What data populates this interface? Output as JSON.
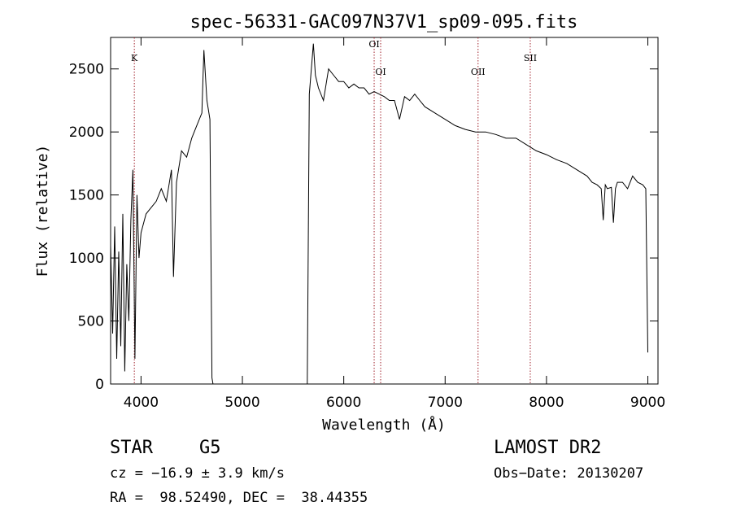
{
  "chart_data": {
    "type": "line",
    "title": "spec-56331-GAC097N37V1_sp09-095.fits",
    "xlabel": "Wavelength (Å)",
    "ylabel": "Flux (relative)",
    "xlim": [
      3700,
      9100
    ],
    "ylim": [
      0,
      2750
    ],
    "x_ticks": [
      4000,
      5000,
      6000,
      7000,
      8000,
      9000
    ],
    "y_ticks": [
      0,
      500,
      1000,
      1500,
      2000,
      2500
    ],
    "grid": false,
    "series": [
      {
        "x": [
          3700,
          3720,
          3740,
          3760,
          3780,
          3800,
          3820,
          3840,
          3860,
          3880,
          3900,
          3920,
          3940,
          3960,
          3980,
          4000,
          4050,
          4100,
          4150,
          4200,
          4250,
          4300,
          4320,
          4350,
          4400,
          4450,
          4500,
          4550,
          4600,
          4620,
          4650,
          4680,
          4700,
          4710,
          4800,
          5000,
          5200,
          5400,
          5600,
          5640,
          5660,
          5680,
          5700,
          5720,
          5750,
          5800,
          5850,
          5900,
          5950,
          6000,
          6050,
          6100,
          6150,
          6200,
          6250,
          6300,
          6350,
          6400,
          6450,
          6500,
          6550,
          6600,
          6650,
          6700,
          6750,
          6800,
          6900,
          7000,
          7100,
          7200,
          7300,
          7400,
          7500,
          7600,
          7700,
          7800,
          7900,
          8000,
          8100,
          8200,
          8300,
          8400,
          8450,
          8500,
          8540,
          8560,
          8580,
          8600,
          8640,
          8660,
          8680,
          8700,
          8750,
          8800,
          8850,
          8900,
          8950,
          8980,
          9000
        ],
        "y": [
          1100,
          400,
          1250,
          200,
          1050,
          300,
          1350,
          100,
          950,
          500,
          1300,
          1700,
          200,
          1500,
          1000,
          1200,
          1350,
          1400,
          1450,
          1550,
          1450,
          1700,
          850,
          1600,
          1850,
          1800,
          1950,
          2050,
          2150,
          2650,
          2250,
          2100,
          50,
          0,
          0,
          0,
          0,
          0,
          0,
          0,
          2300,
          2500,
          2700,
          2450,
          2350,
          2250,
          2500,
          2450,
          2400,
          2400,
          2350,
          2380,
          2350,
          2350,
          2300,
          2320,
          2300,
          2280,
          2250,
          2250,
          2100,
          2280,
          2250,
          2300,
          2250,
          2200,
          2150,
          2100,
          2050,
          2020,
          2000,
          2000,
          1980,
          1950,
          1950,
          1900,
          1850,
          1820,
          1780,
          1750,
          1700,
          1650,
          1600,
          1580,
          1550,
          1300,
          1580,
          1550,
          1560,
          1280,
          1550,
          1600,
          1600,
          1550,
          1650,
          1600,
          1580,
          1550,
          250
        ]
      }
    ],
    "lines": [
      {
        "label": "K",
        "x": 3934
      },
      {
        "label": "OI",
        "x": 6300
      },
      {
        "label": "OI",
        "x": 6364
      },
      {
        "label": "OII",
        "x": 7325
      },
      {
        "label": "SII",
        "x": 7840
      }
    ],
    "colors": {
      "line": "#000000",
      "marker": "#a0202a"
    }
  },
  "info": {
    "class": "STAR",
    "subclass": "G5",
    "survey": "LAMOST DR2",
    "cz": "cz = −16.9 ± 3.9 km/s",
    "obs_date": "Obs−Date: 20130207",
    "radec": "RA =  98.52490, DEC =  38.44355"
  }
}
